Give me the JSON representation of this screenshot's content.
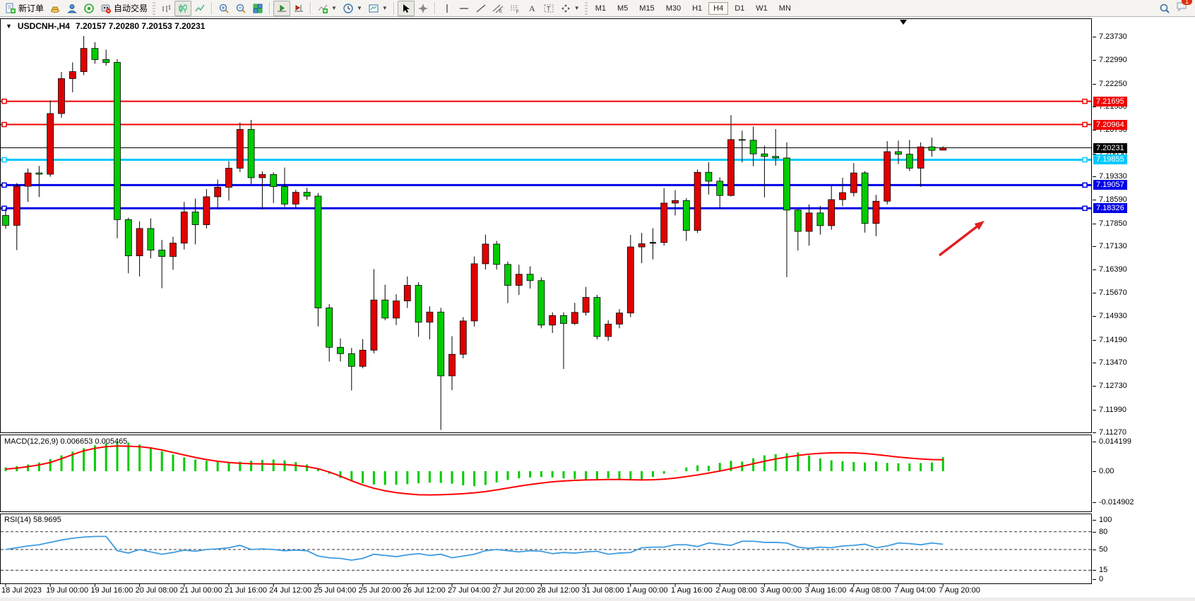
{
  "toolbar": {
    "new_order_label": "新订单",
    "auto_trading_label": "自动交易",
    "timeframes": [
      {
        "label": "M1",
        "active": false
      },
      {
        "label": "M5",
        "active": false
      },
      {
        "label": "M15",
        "active": false
      },
      {
        "label": "M30",
        "active": false
      },
      {
        "label": "H1",
        "active": false
      },
      {
        "label": "H4",
        "active": true
      },
      {
        "label": "D1",
        "active": false
      },
      {
        "label": "W1",
        "active": false
      },
      {
        "label": "MN",
        "active": false
      }
    ],
    "notification_count": "1"
  },
  "chart": {
    "header": {
      "symbol": "USDCNH-,H4",
      "ohlc": "7.20157 7.20280 7.20153 7.20231"
    },
    "price_axis_ticks": [
      "7.23730",
      "7.22990",
      "7.22250",
      "7.21530",
      "7.20790",
      "7.20050",
      "7.19330",
      "7.18590",
      "7.17850",
      "7.17130",
      "7.16390",
      "7.15670",
      "7.14930",
      "7.14190",
      "7.13470",
      "7.12730",
      "7.11990",
      "7.11270"
    ],
    "current_price": {
      "label": "7.20231",
      "value": 7.20231,
      "color": "#000000"
    },
    "levels": [
      {
        "label": "7.21695",
        "value": 7.21695,
        "color": "#f00000",
        "width": 2
      },
      {
        "label": "7.20964",
        "value": 7.20964,
        "color": "#f00000",
        "width": 2
      },
      {
        "label": "7.19855",
        "value": 7.19855,
        "color": "#00c8ff",
        "width": 3
      },
      {
        "label": "7.19057",
        "value": 7.19057,
        "color": "#0000e8",
        "width": 3
      },
      {
        "label": "7.18326",
        "value": 7.18326,
        "color": "#0000e8",
        "width": 3
      }
    ],
    "time_labels": [
      "18 Jul 2023",
      "19 Jul 00:00",
      "19 Jul 16:00",
      "20 Jul 08:00",
      "21 Jul 00:00",
      "21 Jul 16:00",
      "24 Jul 12:00",
      "25 Jul 04:00",
      "25 Jul 20:00",
      "26 Jul 12:00",
      "27 Jul 04:00",
      "27 Jul 20:00",
      "28 Jul 12:00",
      "31 Jul 08:00",
      "1 Aug 00:00",
      "1 Aug 16:00",
      "2 Aug 08:00",
      "3 Aug 00:00",
      "3 Aug 16:00",
      "4 Aug 08:00",
      "7 Aug 04:00",
      "7 Aug 20:00"
    ]
  },
  "macd_panel": {
    "label": "MACD(12,26,9)",
    "values": "0.006653 0.005465",
    "axis_ticks": [
      "0.014199",
      "0.00",
      "-0.014902"
    ]
  },
  "rsi_panel": {
    "label": "RSI(14)",
    "value": "58.9695",
    "axis_ticks": [
      "100",
      "80",
      "50",
      "15",
      "0"
    ]
  },
  "annotation": {
    "type": "arrow",
    "color": "#e02020",
    "tail": [
      1330,
      362
    ],
    "head": [
      1394,
      313
    ]
  },
  "chart_data": {
    "type": "candlestick",
    "symbol": "USDCNH",
    "timeframe": "H4",
    "title": "USDCNH-,H4",
    "up_color": "#e00000",
    "down_color": "#00cc00",
    "price_range": [
      7.1127,
      7.2373
    ],
    "candles_per_time_label": 4,
    "x_labels": [
      "18 Jul 2023",
      "19 Jul 00:00",
      "19 Jul 16:00",
      "20 Jul 08:00",
      "21 Jul 00:00",
      "21 Jul 16:00",
      "24 Jul 12:00",
      "25 Jul 04:00",
      "25 Jul 20:00",
      "26 Jul 12:00",
      "27 Jul 04:00",
      "27 Jul 20:00",
      "28 Jul 12:00",
      "31 Jul 08:00",
      "1 Aug 00:00",
      "1 Aug 16:00",
      "2 Aug 08:00",
      "3 Aug 00:00",
      "3 Aug 16:00",
      "4 Aug 08:00",
      "7 Aug 04:00",
      "7 Aug 20:00"
    ],
    "candles_ohlc": [
      [
        7.181,
        7.1832,
        7.1768,
        7.1779
      ],
      [
        7.1779,
        7.1912,
        7.1701,
        7.1902
      ],
      [
        7.1902,
        7.1958,
        7.1853,
        7.1944
      ],
      [
        7.1944,
        7.1966,
        7.1868,
        7.194
      ],
      [
        7.194,
        7.2172,
        7.1932,
        7.2131
      ],
      [
        7.2131,
        7.2262,
        7.2118,
        7.2241
      ],
      [
        7.2241,
        7.2292,
        7.2198,
        7.2263
      ],
      [
        7.2263,
        7.2375,
        7.2252,
        7.2336
      ],
      [
        7.2336,
        7.2356,
        7.2288,
        7.2301
      ],
      [
        7.2301,
        7.2332,
        7.2282,
        7.2292
      ],
      [
        7.2292,
        7.2302,
        7.1738,
        7.1797
      ],
      [
        7.1797,
        7.1803,
        7.1628,
        7.1683
      ],
      [
        7.1683,
        7.1791,
        7.1618,
        7.1769
      ],
      [
        7.1769,
        7.1801,
        7.1675,
        7.1701
      ],
      [
        7.1701,
        7.1733,
        7.1581,
        7.1681
      ],
      [
        7.1681,
        7.1743,
        7.1639,
        7.1723
      ],
      [
        7.1723,
        7.1853,
        7.1703,
        7.1821
      ],
      [
        7.1821,
        7.1863,
        7.1719,
        7.1781
      ],
      [
        7.1781,
        7.1893,
        7.1769,
        7.1869
      ],
      [
        7.1869,
        7.1923,
        7.1829,
        7.1899
      ],
      [
        7.1899,
        7.1981,
        7.1857,
        7.1959
      ],
      [
        7.1959,
        7.2103,
        7.1947,
        7.2081
      ],
      [
        7.2081,
        7.2111,
        7.1909,
        7.1929
      ],
      [
        7.1929,
        7.1949,
        7.1829,
        7.1939
      ],
      [
        7.1939,
        7.1946,
        7.1849,
        7.1901
      ],
      [
        7.1901,
        7.1961,
        7.1837,
        7.1846
      ],
      [
        7.1846,
        7.1891,
        7.183,
        7.1883
      ],
      [
        7.1883,
        7.1897,
        7.1859,
        7.1871
      ],
      [
        7.1871,
        7.1881,
        7.1461,
        7.1519
      ],
      [
        7.1519,
        7.1531,
        7.135,
        7.1395
      ],
      [
        7.1395,
        7.1423,
        7.135,
        7.1375
      ],
      [
        7.1375,
        7.1393,
        7.1259,
        7.1335
      ],
      [
        7.1335,
        7.1421,
        7.1329,
        7.1386
      ],
      [
        7.1386,
        7.1641,
        7.1376,
        7.1544
      ],
      [
        7.1544,
        7.1592,
        7.148,
        7.1487
      ],
      [
        7.1487,
        7.1562,
        7.1465,
        7.1541
      ],
      [
        7.1541,
        7.1618,
        7.1519,
        7.159
      ],
      [
        7.159,
        7.16,
        7.1428,
        7.1474
      ],
      [
        7.1474,
        7.1524,
        7.142,
        7.1506
      ],
      [
        7.1506,
        7.1519,
        7.1135,
        7.1305
      ],
      [
        7.1305,
        7.143,
        7.126,
        7.1373
      ],
      [
        7.1373,
        7.149,
        7.136,
        7.1478
      ],
      [
        7.1478,
        7.1681,
        7.146,
        7.1658
      ],
      [
        7.1658,
        7.175,
        7.164,
        7.172
      ],
      [
        7.172,
        7.173,
        7.164,
        7.1656
      ],
      [
        7.1656,
        7.1665,
        7.1534,
        7.159
      ],
      [
        7.159,
        7.1655,
        7.156,
        7.1625
      ],
      [
        7.1625,
        7.165,
        7.158,
        7.1605
      ],
      [
        7.1605,
        7.1615,
        7.1455,
        7.1465
      ],
      [
        7.1465,
        7.1505,
        7.144,
        7.1495
      ],
      [
        7.1495,
        7.1505,
        7.1327,
        7.147
      ],
      [
        7.147,
        7.1535,
        7.1465,
        7.1505
      ],
      [
        7.1505,
        7.1585,
        7.1495,
        7.1552
      ],
      [
        7.1552,
        7.156,
        7.142,
        7.1429
      ],
      [
        7.1429,
        7.148,
        7.1415,
        7.1468
      ],
      [
        7.1468,
        7.1515,
        7.1455,
        7.1503
      ],
      [
        7.1503,
        7.1749,
        7.149,
        7.1711
      ],
      [
        7.1711,
        7.1755,
        7.166,
        7.1721
      ],
      [
        7.1723,
        7.177,
        7.1672,
        7.1724
      ],
      [
        7.1725,
        7.1896,
        7.1715,
        7.1849
      ],
      [
        7.1849,
        7.189,
        7.181,
        7.1857
      ],
      [
        7.1857,
        7.1865,
        7.173,
        7.1763
      ],
      [
        7.1763,
        7.1955,
        7.1755,
        7.1946
      ],
      [
        7.1946,
        7.1978,
        7.1876,
        7.1918
      ],
      [
        7.1918,
        7.193,
        7.183,
        7.1873
      ],
      [
        7.1873,
        7.2126,
        7.187,
        7.2049
      ],
      [
        7.2049,
        7.2077,
        7.1977,
        7.2047
      ],
      [
        7.2047,
        7.209,
        7.1965,
        7.2004
      ],
      [
        7.2004,
        7.203,
        7.1867,
        7.1996
      ],
      [
        7.1996,
        7.2082,
        7.1967,
        7.1991
      ],
      [
        7.1991,
        7.204,
        7.1616,
        7.1827
      ],
      [
        7.1827,
        7.183,
        7.17,
        7.176
      ],
      [
        7.176,
        7.1845,
        7.1715,
        7.1818
      ],
      [
        7.1818,
        7.184,
        7.175,
        7.1778
      ],
      [
        7.1778,
        7.1905,
        7.1765,
        7.186
      ],
      [
        7.186,
        7.1929,
        7.184,
        7.1882
      ],
      [
        7.1882,
        7.1975,
        7.187,
        7.1944
      ],
      [
        7.1944,
        7.195,
        7.1756,
        7.1785
      ],
      [
        7.1785,
        7.1875,
        7.1745,
        7.1855
      ],
      [
        7.1855,
        7.2044,
        7.1845,
        7.2011
      ],
      [
        7.2011,
        7.2046,
        7.1972,
        7.2003
      ],
      [
        7.2003,
        7.2048,
        7.195,
        7.1959
      ],
      [
        7.1959,
        7.204,
        7.19,
        7.2026
      ],
      [
        7.2026,
        7.2055,
        7.1995,
        7.2015
      ],
      [
        7.20157,
        7.2028,
        7.20153,
        7.20231
      ]
    ],
    "indicators": {
      "macd": {
        "params": "12,26,9",
        "current_values": [
          0.006653,
          0.005465
        ],
        "range": [
          -0.014902,
          0.014199
        ],
        "histogram": [
          0.0018,
          0.0024,
          0.0032,
          0.0042,
          0.0058,
          0.0076,
          0.0094,
          0.011,
          0.0124,
          0.0134,
          0.0142,
          0.0138,
          0.0128,
          0.0112,
          0.0096,
          0.008,
          0.0066,
          0.0056,
          0.005,
          0.0046,
          0.0044,
          0.0046,
          0.005,
          0.0054,
          0.0056,
          0.0052,
          0.0044,
          0.0032,
          0.0012,
          -0.0012,
          -0.0032,
          -0.0048,
          -0.0058,
          -0.0064,
          -0.0066,
          -0.0065,
          -0.0062,
          -0.0058,
          -0.0055,
          -0.0056,
          -0.006,
          -0.0068,
          -0.0072,
          -0.0066,
          -0.0054,
          -0.0042,
          -0.0034,
          -0.003,
          -0.0028,
          -0.003,
          -0.0034,
          -0.0038,
          -0.004,
          -0.0038,
          -0.0034,
          -0.0038,
          -0.0042,
          -0.004,
          -0.0028,
          -0.0012,
          0.0002,
          0.0018,
          0.0028,
          0.0026,
          0.004,
          0.005,
          0.0046,
          0.0062,
          0.0076,
          0.0082,
          0.0086,
          0.009,
          0.0076,
          0.0062,
          0.0052,
          0.0048,
          0.0044,
          0.0042,
          0.0046,
          0.004,
          0.0038,
          0.0037,
          0.0039,
          0.0042,
          0.0067
        ],
        "signal": [
          0.001,
          0.0015,
          0.0022,
          0.003,
          0.0042,
          0.006,
          0.008,
          0.0098,
          0.011,
          0.0118,
          0.0121,
          0.012,
          0.0118,
          0.0112,
          0.0102,
          0.009,
          0.0078,
          0.0066,
          0.0056,
          0.0048,
          0.0042,
          0.0038,
          0.0036,
          0.0035,
          0.0034,
          0.0032,
          0.0028,
          0.0022,
          0.0012,
          -0.0004,
          -0.0024,
          -0.0046,
          -0.0066,
          -0.0082,
          -0.0094,
          -0.0103,
          -0.0109,
          -0.0113,
          -0.0114,
          -0.0113,
          -0.0111,
          -0.0108,
          -0.0104,
          -0.0098,
          -0.009,
          -0.0081,
          -0.0072,
          -0.0064,
          -0.0057,
          -0.0051,
          -0.0047,
          -0.0044,
          -0.0042,
          -0.0041,
          -0.004,
          -0.004,
          -0.0041,
          -0.0042,
          -0.0041,
          -0.0038,
          -0.0033,
          -0.0026,
          -0.0018,
          -0.0009,
          0.0001,
          0.0012,
          0.0024,
          0.0036,
          0.0048,
          0.0059,
          0.0068,
          0.0076,
          0.0082,
          0.0086,
          0.0088,
          0.0089,
          0.0088,
          0.0085,
          0.008,
          0.0074,
          0.0068,
          0.0063,
          0.0059,
          0.0056,
          0.0055
        ]
      },
      "rsi": {
        "params": "14",
        "current_value": 58.9695,
        "range": [
          0,
          100
        ],
        "levels": [
          80,
          50,
          15
        ],
        "values": [
          50,
          53,
          56,
          58,
          62,
          66,
          69,
          71,
          72,
          72,
          48,
          44,
          50,
          46,
          42,
          45,
          49,
          47,
          50,
          51,
          53,
          57,
          50,
          51,
          50,
          48,
          49,
          48,
          39,
          36,
          35,
          32,
          35,
          42,
          40,
          38,
          41,
          43,
          40,
          42,
          36,
          39,
          42,
          48,
          50,
          48,
          46,
          48,
          47,
          43,
          45,
          44,
          46,
          47,
          42,
          44,
          45,
          53,
          54,
          54,
          58,
          58,
          55,
          61,
          59,
          57,
          64,
          64,
          62,
          62,
          61,
          54,
          52,
          54,
          53,
          56,
          57,
          59,
          53,
          56,
          61,
          60,
          58,
          61,
          58.97
        ]
      }
    },
    "overlay_levels": [
      7.21695,
      7.20964,
      7.19855,
      7.19057,
      7.18326
    ],
    "current_price": 7.20231
  }
}
